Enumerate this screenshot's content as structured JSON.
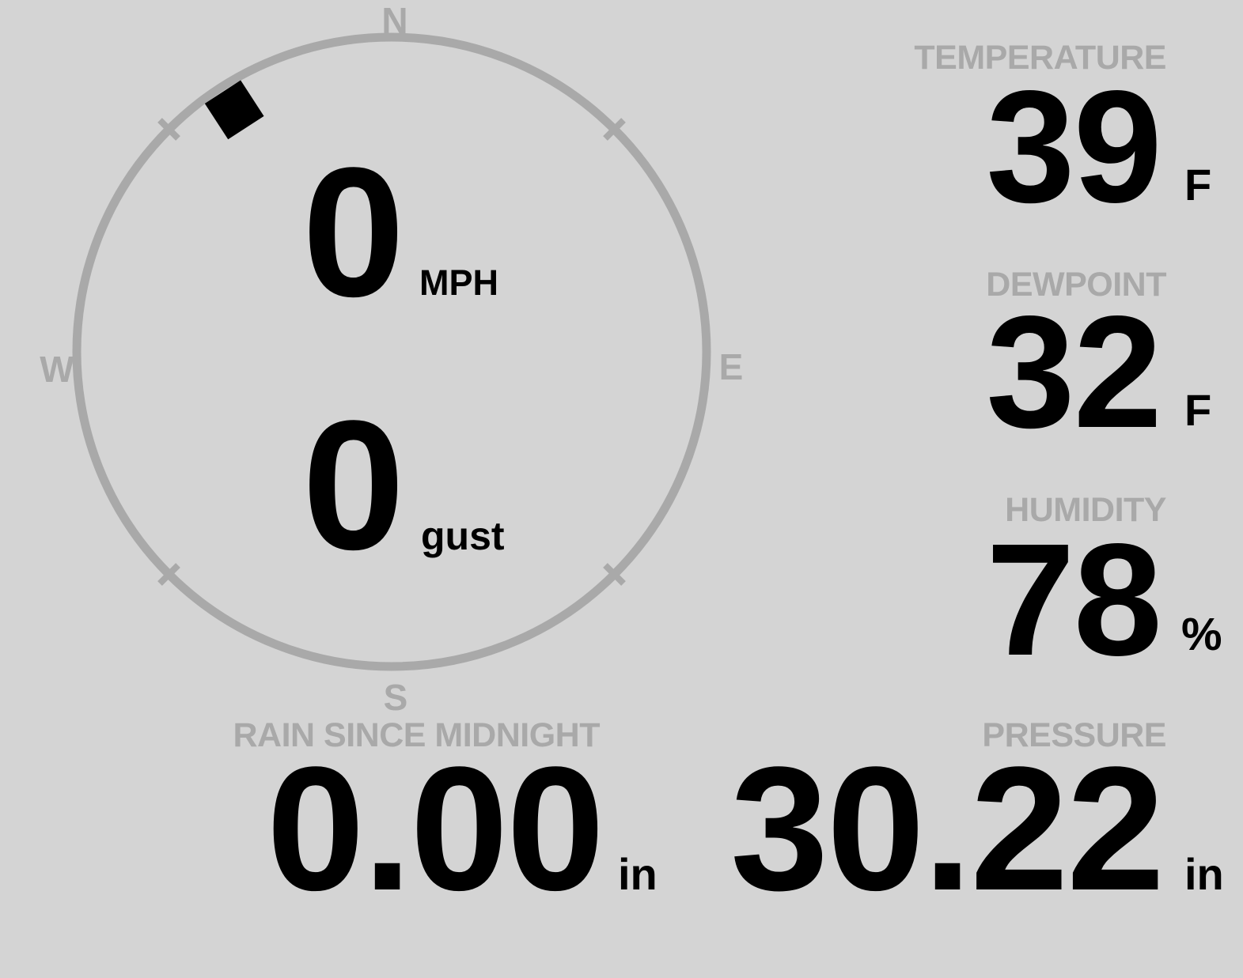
{
  "colors": {
    "background": "#d4d4d4",
    "muted": "#a9a9a9",
    "ink": "#000000"
  },
  "wind": {
    "speed": "0",
    "speed_unit": "MPH",
    "gust": "0",
    "gust_unit": "gust",
    "direction_degrees": 327,
    "compass": {
      "north": "N",
      "east": "E",
      "south": "S",
      "west": "W"
    }
  },
  "metrics": {
    "temperature": {
      "label": "TEMPERATURE",
      "value": "39",
      "unit": "F"
    },
    "dewpoint": {
      "label": "DEWPOINT",
      "value": "32",
      "unit": "F"
    },
    "humidity": {
      "label": "HUMIDITY",
      "value": "78",
      "unit": "%"
    },
    "rain_since_midnight": {
      "label": "RAIN SINCE MIDNIGHT",
      "value": "0.00",
      "unit": "in"
    },
    "pressure": {
      "label": "PRESSURE",
      "value": "30.22",
      "unit": "in"
    }
  }
}
